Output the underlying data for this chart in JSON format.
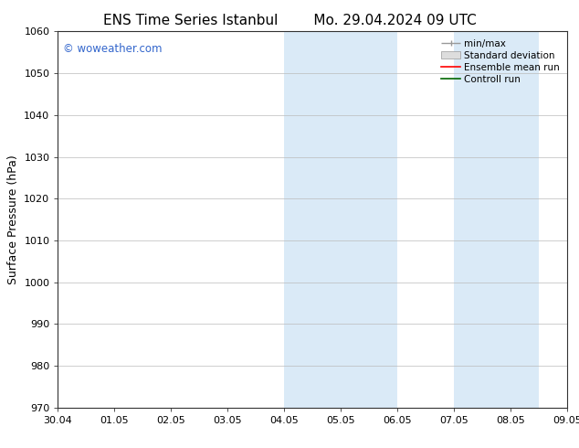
{
  "title_left": "ENS Time Series Istanbul",
  "title_right": "Mo. 29.04.2024 09 UTC",
  "ylabel": "Surface Pressure (hPa)",
  "ylim": [
    970,
    1060
  ],
  "yticks": [
    970,
    980,
    990,
    1000,
    1010,
    1020,
    1030,
    1040,
    1050,
    1060
  ],
  "xtick_labels": [
    "30.04",
    "01.05",
    "02.05",
    "03.05",
    "04.05",
    "05.05",
    "06.05",
    "07.05",
    "08.05",
    "09.05"
  ],
  "xtick_positions": [
    0,
    1,
    2,
    3,
    4,
    5,
    6,
    7,
    8,
    9
  ],
  "shaded_regions": [
    {
      "xstart": 4.0,
      "xend": 4.5
    },
    {
      "xstart": 4.5,
      "xend": 5.0
    },
    {
      "xstart": 5.0,
      "xend": 6.0
    },
    {
      "xstart": 7.0,
      "xend": 7.5
    },
    {
      "xstart": 7.5,
      "xend": 8.0
    },
    {
      "xstart": 8.0,
      "xend": 8.5
    }
  ],
  "shaded_color": "#daeaf7",
  "watermark_text": "© woweather.com",
  "watermark_color": "#3366cc",
  "background_color": "#ffffff",
  "plot_background": "#ffffff",
  "grid_color": "#bbbbbb",
  "legend_items": [
    {
      "label": "min/max",
      "color": "#999999"
    },
    {
      "label": "Standard deviation",
      "color": "#cccccc"
    },
    {
      "label": "Ensemble mean run",
      "color": "#ff0000"
    },
    {
      "label": "Controll run",
      "color": "#006600"
    }
  ],
  "title_fontsize": 11,
  "ylabel_fontsize": 9,
  "tick_fontsize": 8,
  "legend_fontsize": 7.5,
  "watermark_fontsize": 8.5
}
